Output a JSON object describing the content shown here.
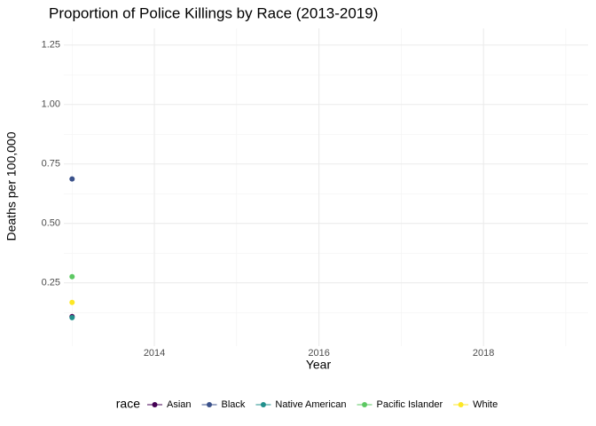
{
  "chart_data": {
    "type": "line",
    "title": "Proportion of Police Killings by Race (2013-2019)",
    "x_label": "Year",
    "y_label": "Deaths per 100,000",
    "legend_title": "race",
    "legend_position": "bottom",
    "grid": true,
    "x": [
      2013
    ],
    "xlim": [
      2012.9,
      2019.27
    ],
    "xticks": [
      2014,
      2016,
      2018
    ],
    "ylim": [
      0.04,
      1.32
    ],
    "yticks": [
      0.25,
      {
        "value": 0.5,
        "label": "0.50"
      },
      0.75,
      {
        "value": 1.0,
        "label": "1.00"
      },
      1.25
    ],
    "series": [
      {
        "name": "Asian",
        "color": "#440154",
        "values": [
          0.108
        ]
      },
      {
        "name": "Black",
        "color": "#3b528b",
        "values": [
          0.687
        ]
      },
      {
        "name": "Native American",
        "color": "#21908c",
        "values": [
          0.104
        ]
      },
      {
        "name": "Pacific Islander",
        "color": "#5dc863",
        "values": [
          0.276
        ]
      },
      {
        "name": "White",
        "color": "#fde725",
        "values": [
          0.168
        ]
      }
    ]
  }
}
